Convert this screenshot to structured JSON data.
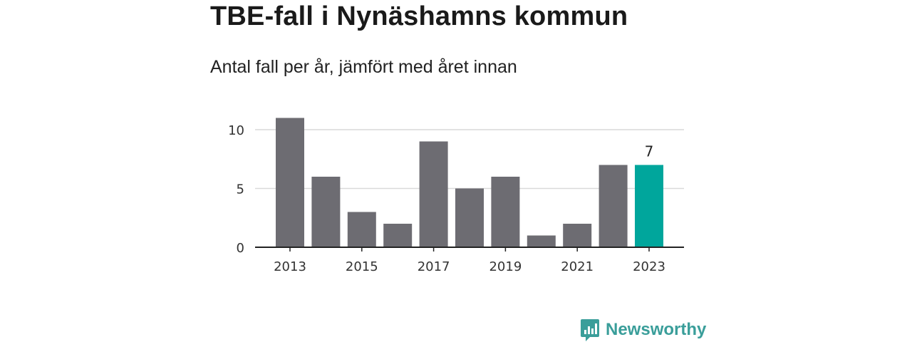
{
  "header": {
    "title": "TBE-fall i Nynäshamns kommun",
    "subtitle": "Antal fall per år, jämfört med året innan"
  },
  "brand": {
    "name": "Newsworthy",
    "color": "#3a9e9a",
    "icon": "newsworthy-logo-icon"
  },
  "chart_data": {
    "type": "bar",
    "categories": [
      "2013",
      "2014",
      "2015",
      "2016",
      "2017",
      "2018",
      "2019",
      "2020",
      "2021",
      "2022",
      "2023"
    ],
    "values": [
      11,
      6,
      3,
      2,
      9,
      5,
      6,
      1,
      2,
      7,
      7
    ],
    "x_tick_labels": [
      "2013",
      "2015",
      "2017",
      "2019",
      "2021",
      "2023"
    ],
    "y_ticks": [
      0,
      5,
      10
    ],
    "ylim": [
      0,
      11
    ],
    "grid": true,
    "highlight_index": 10,
    "highlight_label": "7",
    "colors": {
      "bar": "#6d6c72",
      "highlight": "#00a69c",
      "grid": "#d9d9d9",
      "axis": "#222222"
    }
  }
}
